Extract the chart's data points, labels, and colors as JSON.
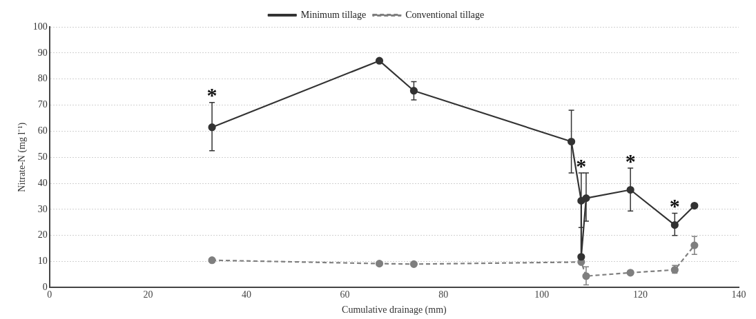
{
  "chart_data": {
    "type": "line",
    "xlabel": "Cumulative drainage (mm)",
    "ylabel": "Nitrate-N (mg l⁻¹)",
    "xlim": [
      0,
      140
    ],
    "xticks": [
      0,
      20,
      40,
      60,
      80,
      100,
      120,
      140
    ],
    "ylim": [
      0,
      100
    ],
    "yticks": [
      0,
      10,
      20,
      30,
      40,
      50,
      60,
      70,
      80,
      90,
      100
    ],
    "grid": "y",
    "legend": "top",
    "marker": "circle",
    "series": [
      {
        "name": "Minimum tillage",
        "color": "#333333",
        "line_style": "solid",
        "x": [
          33,
          67,
          74,
          106,
          108,
          108,
          109,
          118,
          127,
          131
        ],
        "values": [
          61.5,
          87,
          75.5,
          56,
          33.3,
          11.8,
          34.3,
          37.5,
          24,
          31.4
        ],
        "errors": [
          [
            52.5,
            71
          ],
          null,
          [
            72,
            79
          ],
          [
            44,
            68
          ],
          [
            23,
            44
          ],
          null,
          [
            25.5,
            44
          ],
          [
            29.4,
            45.8
          ],
          [
            20,
            28.5
          ],
          null
        ]
      },
      {
        "name": "Conventional tillage",
        "color": "#7f7f7f",
        "line_style": "dashed",
        "x": [
          33,
          67,
          74,
          108,
          109,
          118,
          127,
          131
        ],
        "values": [
          10.5,
          9.2,
          9,
          9.8,
          4.4,
          5.7,
          6.8,
          16.2
        ],
        "errors": [
          null,
          null,
          null,
          null,
          [
            1,
            8
          ],
          null,
          [
            5.5,
            8.5
          ],
          [
            12.7,
            19.6
          ]
        ]
      }
    ],
    "annotations": [
      {
        "text": "*",
        "x": 33,
        "y": 71
      },
      {
        "text": "*",
        "x": 108,
        "y": 44
      },
      {
        "text": "*",
        "x": 118,
        "y": 45.8
      },
      {
        "text": "*",
        "x": 127,
        "y": 28.5
      }
    ]
  }
}
